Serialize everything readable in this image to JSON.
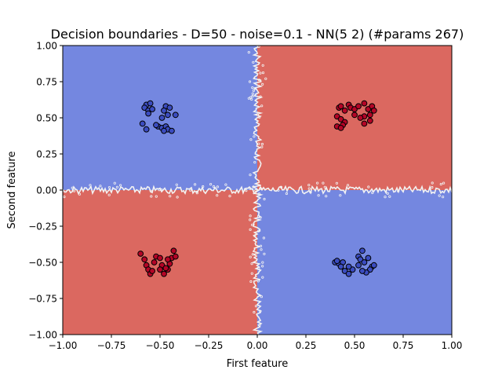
{
  "chart_data": {
    "type": "scatter",
    "title": "Decision boundaries - D=50 - noise=0.1 - NN(5 2) (#params 267)",
    "xlabel": "First feature",
    "ylabel": "Second feature",
    "xlim": [
      -1.0,
      1.0
    ],
    "ylim": [
      -1.0,
      1.0
    ],
    "xticks": [
      "−1.00",
      "−0.75",
      "−0.50",
      "−0.25",
      "0.00",
      "0.25",
      "0.50",
      "0.75",
      "1.00"
    ],
    "yticks": [
      "−1.00",
      "−0.75",
      "−0.50",
      "−0.25",
      "0.00",
      "0.25",
      "0.50",
      "0.75",
      "1.00"
    ],
    "grid": false,
    "background_regions": [
      {
        "class": "blue",
        "x": [
          -1.0,
          0.0
        ],
        "y": [
          0.0,
          1.0
        ]
      },
      {
        "class": "red",
        "x": [
          0.0,
          1.0
        ],
        "y": [
          0.0,
          1.0
        ]
      },
      {
        "class": "red",
        "x": [
          -1.0,
          0.0
        ],
        "y": [
          -1.0,
          0.0
        ]
      },
      {
        "class": "blue",
        "x": [
          0.0,
          1.0
        ],
        "y": [
          -1.0,
          0.0
        ]
      }
    ],
    "colors": {
      "region_blue": "#7487e0",
      "region_red": "#db6860",
      "point_blue": "#3b4cc0",
      "point_red": "#b40426",
      "boundary": "#f2f2f2"
    },
    "series": [
      {
        "class": "blue",
        "points": [
          [
            -0.57,
            0.59
          ],
          [
            -0.55,
            0.6
          ],
          [
            -0.58,
            0.57
          ],
          [
            -0.56,
            0.55
          ],
          [
            -0.54,
            0.56
          ],
          [
            -0.56,
            0.53
          ],
          [
            -0.47,
            0.58
          ],
          [
            -0.45,
            0.57
          ],
          [
            -0.48,
            0.55
          ],
          [
            -0.46,
            0.52
          ],
          [
            -0.49,
            0.5
          ],
          [
            -0.42,
            0.52
          ],
          [
            -0.59,
            0.46
          ],
          [
            -0.57,
            0.42
          ],
          [
            -0.51,
            0.44
          ],
          [
            -0.49,
            0.43
          ],
          [
            -0.47,
            0.44
          ],
          [
            -0.46,
            0.42
          ],
          [
            -0.48,
            0.41
          ],
          [
            -0.44,
            0.41
          ],
          [
            -0.52,
            0.45
          ],
          [
            0.4,
            -0.5
          ],
          [
            0.42,
            -0.51
          ],
          [
            0.44,
            -0.5
          ],
          [
            0.43,
            -0.53
          ],
          [
            0.41,
            -0.49
          ],
          [
            0.45,
            -0.56
          ],
          [
            0.47,
            -0.58
          ],
          [
            0.49,
            -0.55
          ],
          [
            0.52,
            -0.46
          ],
          [
            0.54,
            -0.42
          ],
          [
            0.53,
            -0.48
          ],
          [
            0.55,
            -0.5
          ],
          [
            0.57,
            -0.47
          ],
          [
            0.59,
            -0.53
          ],
          [
            0.58,
            -0.55
          ],
          [
            0.56,
            -0.57
          ],
          [
            0.54,
            -0.56
          ],
          [
            0.52,
            -0.52
          ],
          [
            0.6,
            -0.52
          ],
          [
            0.47,
            -0.53
          ]
        ]
      },
      {
        "class": "red",
        "points": [
          [
            0.42,
            0.57
          ],
          [
            0.43,
            0.58
          ],
          [
            0.45,
            0.55
          ],
          [
            0.47,
            0.59
          ],
          [
            0.48,
            0.57
          ],
          [
            0.5,
            0.56
          ],
          [
            0.52,
            0.58
          ],
          [
            0.55,
            0.6
          ],
          [
            0.57,
            0.56
          ],
          [
            0.59,
            0.58
          ],
          [
            0.6,
            0.55
          ],
          [
            0.58,
            0.52
          ],
          [
            0.55,
            0.51
          ],
          [
            0.53,
            0.5
          ],
          [
            0.5,
            0.52
          ],
          [
            0.41,
            0.51
          ],
          [
            0.43,
            0.49
          ],
          [
            0.45,
            0.47
          ],
          [
            0.44,
            0.45
          ],
          [
            0.41,
            0.44
          ],
          [
            0.43,
            0.43
          ],
          [
            0.55,
            0.46
          ],
          [
            0.58,
            0.48
          ],
          [
            -0.6,
            -0.44
          ],
          [
            -0.58,
            -0.48
          ],
          [
            -0.57,
            -0.52
          ],
          [
            -0.56,
            -0.55
          ],
          [
            -0.55,
            -0.58
          ],
          [
            -0.53,
            -0.5
          ],
          [
            -0.52,
            -0.46
          ],
          [
            -0.5,
            -0.47
          ],
          [
            -0.49,
            -0.52
          ],
          [
            -0.5,
            -0.55
          ],
          [
            -0.48,
            -0.58
          ],
          [
            -0.46,
            -0.55
          ],
          [
            -0.45,
            -0.51
          ],
          [
            -0.44,
            -0.47
          ],
          [
            -0.42,
            -0.46
          ],
          [
            -0.43,
            -0.42
          ],
          [
            -0.46,
            -0.48
          ],
          [
            -0.54,
            -0.56
          ],
          [
            -0.47,
            -0.54
          ]
        ]
      }
    ]
  }
}
